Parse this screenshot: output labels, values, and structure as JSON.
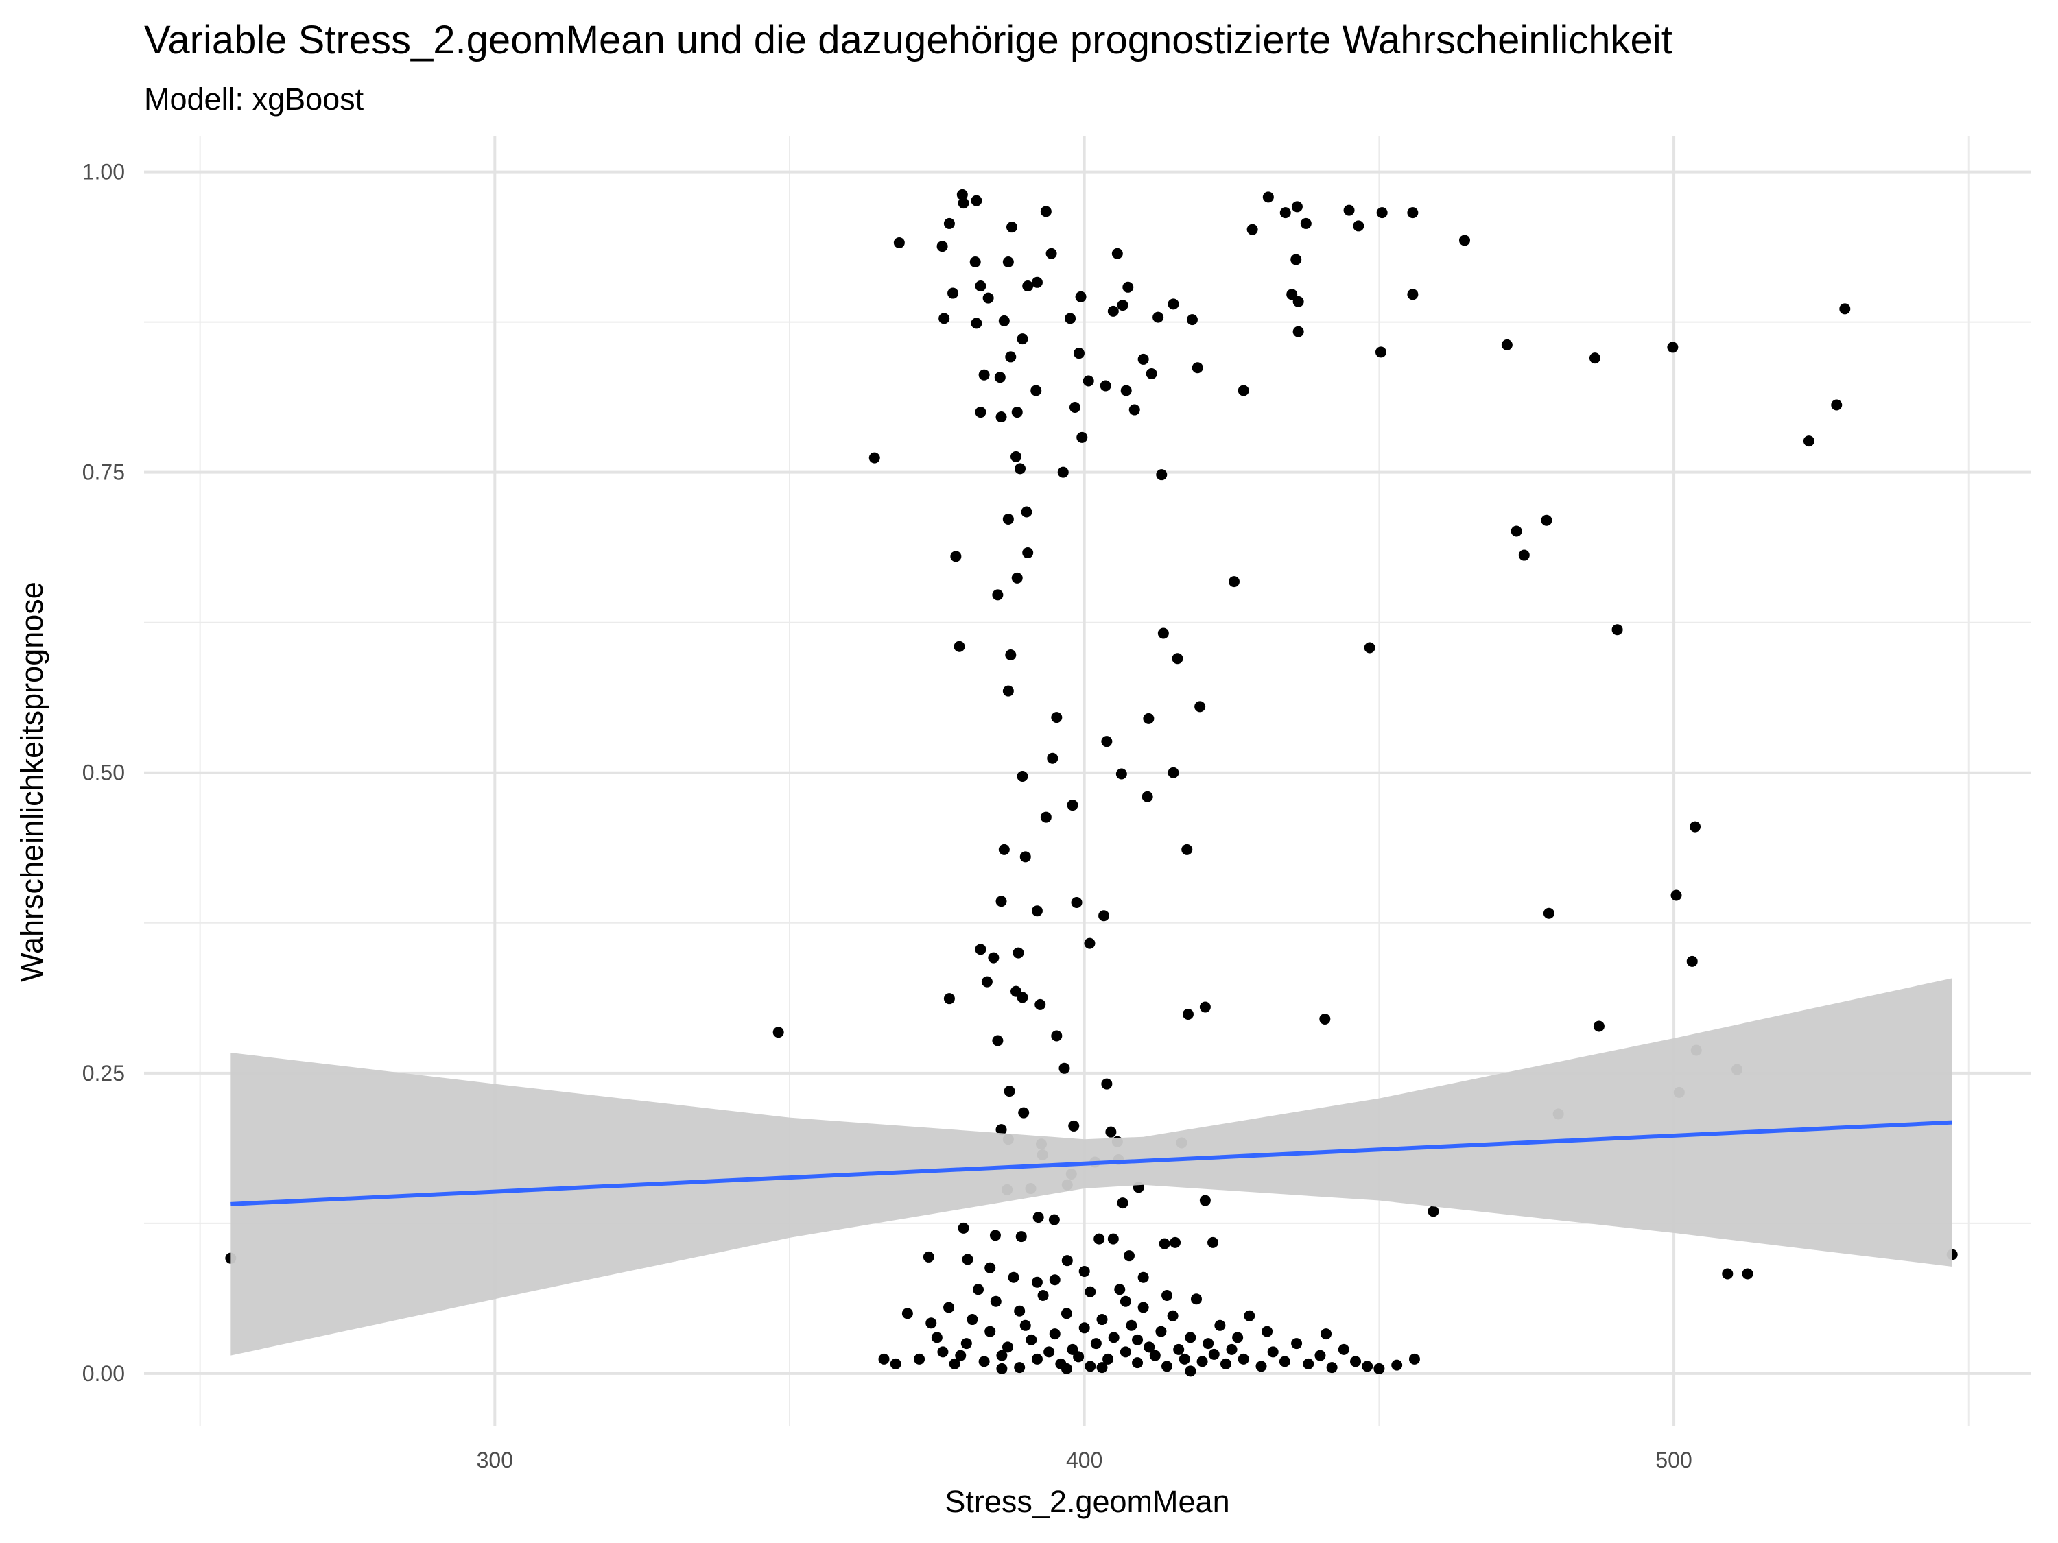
{
  "chart_data": {
    "type": "scatter",
    "title": "Variable Stress_2.geomMean und die dazugehörige prognostizierte Wahrscheinlichkeit",
    "subtitle": "Modell: xgBoost",
    "x_label": "Stress_2.geomMean",
    "y_label": "Wahrscheinlichkeitsprognose",
    "color": "#000000",
    "grid": true,
    "xlim": [
      240.5,
      560.5
    ],
    "ylim": [
      -0.044,
      1.03
    ],
    "xticks": [
      300,
      400,
      500
    ],
    "yticks": [
      {
        "value": 0,
        "label": "0.00"
      },
      {
        "value": 0.25,
        "label": "0.25"
      },
      {
        "value": 0.5,
        "label": "0.50"
      },
      {
        "value": 0.75,
        "label": "0.75"
      },
      {
        "value": 1,
        "label": "1.00"
      }
    ],
    "x_minor_ticks": [
      250,
      350,
      450,
      550
    ],
    "y_minor_ticks": [
      0.125,
      0.375,
      0.625,
      0.875
    ],
    "x": [
      255.2,
      348.1,
      364.4,
      368.6,
      375.9,
      377.1,
      377.7,
      376.2,
      378.2,
      378.8,
      379.3,
      379.5,
      381.7,
      381.5,
      382.4,
      383.7,
      381.7,
      383,
      382.4,
      385.7,
      387.1,
      387.7,
      393.5,
      394.4,
      390.4,
      392,
      389.5,
      386.4,
      387.5,
      391.8,
      388.6,
      385.9,
      388.4,
      389.1,
      396.4,
      387.1,
      390.2,
      390.4,
      388.6,
      385.3,
      387.5,
      387.1,
      395.3,
      394.6,
      389.5,
      398,
      393.5,
      386.4,
      390,
      385.9,
      392,
      382.4,
      384.6,
      388.8,
      383.5,
      388.4,
      389.5,
      377.1,
      392.5,
      395.3,
      385.3,
      396.6,
      387.3,
      389.7,
      398.2,
      385.9,
      387.1,
      392.7,
      392.9,
      397.8,
      401.8,
      397.1,
      386.9,
      390.9,
      392.2,
      394.9,
      379.5,
      384.9,
      389.3,
      373.6,
      380.2,
      397.1,
      399.4,
      397.6,
      399.1,
      398.4,
      399.6,
      400.7,
      403.6,
      405.6,
      404.9,
      406.5,
      407.4,
      410,
      411.4,
      407.1,
      408.5,
      412.5,
      415.1,
      418.3,
      413.1,
      419.2,
      427,
      428.5,
      431.2,
      434.1,
      436.1,
      437.6,
      435.9,
      435.2,
      436.3,
      436.3,
      444.9,
      446.5,
      450.5,
      455.7,
      455.7,
      450.3,
      464.5,
      471.7,
      486.6,
      499.8,
      529,
      527.6,
      522.9,
      473.3,
      478.4,
      474.6,
      490.4,
      448.4,
      425.4,
      413.4,
      415.8,
      410.9,
      419.6,
      403.8,
      406.3,
      415.1,
      410.7,
      417.4,
      398.7,
      403.3,
      400.9,
      417.6,
      420.5,
      440.8,
      478.8,
      503.6,
      500.4,
      503.1,
      487.3,
      503.8,
      510.7,
      500.9,
      480.4,
      459.2,
      509.1,
      512.5,
      547.2,
      403.8,
      404.5,
      405.6,
      405.8,
      409.2,
      406.5,
      416.5,
      420.5,
      402.5,
      404.9,
      413.6,
      415.4,
      421.8,
      407.6,
      372,
      375,
      376,
      378,
      380,
      381,
      383,
      384,
      385,
      386,
      387,
      388,
      389,
      390,
      391,
      392,
      393,
      394,
      395,
      396,
      397,
      398,
      399,
      400,
      401,
      402,
      403,
      404,
      405,
      406,
      407,
      408,
      409,
      410,
      411,
      412,
      413,
      414,
      415,
      416,
      417,
      418,
      419,
      420,
      421,
      422,
      423,
      424,
      425,
      427,
      428,
      430,
      432,
      434,
      436,
      438,
      440,
      442,
      444,
      446,
      448,
      450,
      453,
      456,
      366,
      368,
      374,
      377,
      379,
      382,
      386,
      389,
      392,
      397,
      401,
      403,
      407,
      409,
      414,
      418,
      426,
      431,
      441,
      370,
      384,
      395,
      410,
      400
    ],
    "values": [
      0.096,
      0.284,
      0.762,
      0.941,
      0.938,
      0.957,
      0.899,
      0.878,
      0.68,
      0.605,
      0.981,
      0.974,
      0.976,
      0.925,
      0.905,
      0.895,
      0.874,
      0.831,
      0.8,
      0.829,
      0.925,
      0.954,
      0.967,
      0.932,
      0.905,
      0.908,
      0.861,
      0.876,
      0.846,
      0.818,
      0.8,
      0.796,
      0.763,
      0.753,
      0.75,
      0.711,
      0.717,
      0.683,
      0.662,
      0.648,
      0.598,
      0.568,
      0.546,
      0.512,
      0.497,
      0.473,
      0.463,
      0.436,
      0.43,
      0.393,
      0.385,
      0.353,
      0.346,
      0.35,
      0.326,
      0.318,
      0.313,
      0.312,
      0.307,
      0.281,
      0.277,
      0.254,
      0.235,
      0.217,
      0.206,
      0.203,
      0.195,
      0.191,
      0.182,
      0.166,
      0.176,
      0.157,
      0.153,
      0.154,
      0.13,
      0.128,
      0.121,
      0.115,
      0.114,
      0.097,
      0.095,
      0.094,
      0.896,
      0.878,
      0.849,
      0.804,
      0.779,
      0.826,
      0.822,
      0.932,
      0.884,
      0.889,
      0.904,
      0.844,
      0.832,
      0.818,
      0.802,
      0.879,
      0.89,
      0.877,
      0.748,
      0.837,
      0.818,
      0.952,
      0.979,
      0.966,
      0.971,
      0.957,
      0.927,
      0.898,
      0.892,
      0.867,
      0.968,
      0.955,
      0.966,
      0.966,
      0.898,
      0.85,
      0.943,
      0.856,
      0.845,
      0.854,
      0.886,
      0.806,
      0.776,
      0.701,
      0.71,
      0.681,
      0.619,
      0.604,
      0.659,
      0.616,
      0.595,
      0.545,
      0.555,
      0.526,
      0.499,
      0.5,
      0.48,
      0.436,
      0.392,
      0.381,
      0.358,
      0.299,
      0.305,
      0.295,
      0.383,
      0.455,
      0.398,
      0.343,
      0.289,
      0.269,
      0.253,
      0.234,
      0.216,
      0.135,
      0.083,
      0.083,
      0.099,
      0.241,
      0.201,
      0.193,
      0.178,
      0.155,
      0.142,
      0.192,
      0.144,
      0.112,
      0.112,
      0.108,
      0.109,
      0.109,
      0.098,
      0.012,
      0.03,
      0.018,
      0.008,
      0.025,
      0.045,
      0.01,
      0.035,
      0.06,
      0.015,
      0.022,
      0.08,
      0.005,
      0.04,
      0.028,
      0.012,
      0.065,
      0.018,
      0.033,
      0.008,
      0.05,
      0.02,
      0.014,
      0.038,
      0.006,
      0.025,
      0.045,
      0.012,
      0.03,
      0.07,
      0.018,
      0.04,
      0.009,
      0.055,
      0.022,
      0.015,
      0.035,
      0.006,
      0.048,
      0.02,
      0.012,
      0.03,
      0.062,
      0.01,
      0.025,
      0.016,
      0.04,
      0.008,
      0.02,
      0.012,
      0.048,
      0.006,
      0.018,
      0.01,
      0.025,
      0.008,
      0.015,
      0.005,
      0.02,
      0.01,
      0.006,
      0.004,
      0.007,
      0.012,
      0.012,
      0.008,
      0.042,
      0.055,
      0.015,
      0.07,
      0.004,
      0.052,
      0.076,
      0.004,
      0.068,
      0.005,
      0.06,
      0.028,
      0.065,
      0.002,
      0.03,
      0.035,
      0.033,
      0.05,
      0.088,
      0.078,
      0.08,
      0.085
    ],
    "smooth": {
      "color": "#3366ff",
      "band_color": "#cccccc",
      "x": [
        255.2,
        300,
        350,
        400,
        410,
        450,
        500,
        547.2
      ],
      "y": [
        0.141,
        0.1514,
        0.1631,
        0.1747,
        0.177,
        0.1864,
        0.198,
        0.209
      ],
      "ymin": [
        0.015,
        0.062,
        0.113,
        0.154,
        0.157,
        0.144,
        0.117,
        0.089
      ],
      "ymax": [
        0.267,
        0.241,
        0.213,
        0.195,
        0.197,
        0.229,
        0.279,
        0.329
      ]
    }
  }
}
